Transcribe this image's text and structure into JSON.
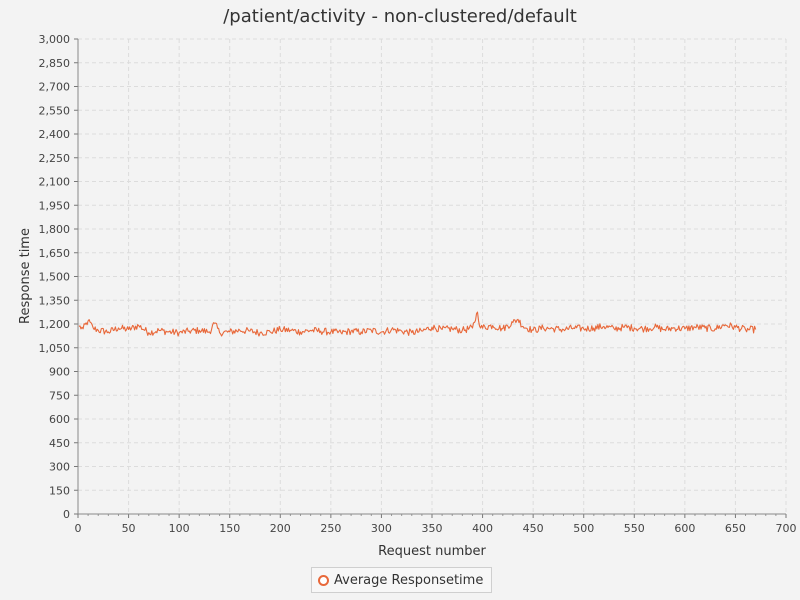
{
  "chart_data": {
    "type": "line",
    "title": "/patient/activity - non-clustered/default",
    "xlabel": "Request number",
    "ylabel": "Response time",
    "xlim": [
      0,
      700
    ],
    "ylim": [
      0,
      3000
    ],
    "x_ticks": [
      0,
      50,
      100,
      150,
      200,
      250,
      300,
      350,
      400,
      450,
      500,
      550,
      600,
      650,
      700
    ],
    "y_ticks": [
      0,
      150,
      300,
      450,
      600,
      750,
      900,
      1050,
      1200,
      1350,
      1500,
      1650,
      1800,
      1950,
      2100,
      2250,
      2400,
      2550,
      2700,
      2850,
      3000
    ],
    "y_tick_labels": [
      "0",
      "150",
      "300",
      "450",
      "600",
      "750",
      "900",
      "1,050",
      "1,200",
      "1,350",
      "1,500",
      "1,650",
      "1,800",
      "1,950",
      "2,100",
      "2,250",
      "2,400",
      "2,550",
      "2,700",
      "2,850",
      "3,000"
    ],
    "grid": true,
    "legend_position": "bottom-center",
    "series": [
      {
        "name": "Average Responsetime",
        "color": "#e8683a",
        "x_start": 1,
        "x_end": 670,
        "anchors": [
          [
            1,
            1185
          ],
          [
            5,
            1170
          ],
          [
            10,
            1220
          ],
          [
            15,
            1175
          ],
          [
            20,
            1160
          ],
          [
            30,
            1150
          ],
          [
            40,
            1175
          ],
          [
            50,
            1165
          ],
          [
            60,
            1190
          ],
          [
            70,
            1145
          ],
          [
            80,
            1160
          ],
          [
            90,
            1150
          ],
          [
            100,
            1145
          ],
          [
            110,
            1155
          ],
          [
            120,
            1160
          ],
          [
            130,
            1150
          ],
          [
            135,
            1205
          ],
          [
            140,
            1145
          ],
          [
            150,
            1150
          ],
          [
            160,
            1160
          ],
          [
            170,
            1155
          ],
          [
            180,
            1145
          ],
          [
            190,
            1150
          ],
          [
            200,
            1165
          ],
          [
            210,
            1160
          ],
          [
            220,
            1150
          ],
          [
            230,
            1160
          ],
          [
            240,
            1155
          ],
          [
            250,
            1150
          ],
          [
            260,
            1145
          ],
          [
            270,
            1155
          ],
          [
            280,
            1150
          ],
          [
            290,
            1160
          ],
          [
            300,
            1150
          ],
          [
            310,
            1165
          ],
          [
            320,
            1155
          ],
          [
            330,
            1145
          ],
          [
            340,
            1155
          ],
          [
            350,
            1180
          ],
          [
            360,
            1165
          ],
          [
            370,
            1170
          ],
          [
            380,
            1160
          ],
          [
            390,
            1175
          ],
          [
            395,
            1275
          ],
          [
            398,
            1175
          ],
          [
            410,
            1190
          ],
          [
            420,
            1170
          ],
          [
            430,
            1210
          ],
          [
            435,
            1230
          ],
          [
            440,
            1185
          ],
          [
            450,
            1160
          ],
          [
            460,
            1175
          ],
          [
            470,
            1170
          ],
          [
            480,
            1165
          ],
          [
            490,
            1175
          ],
          [
            500,
            1170
          ],
          [
            510,
            1175
          ],
          [
            520,
            1185
          ],
          [
            530,
            1170
          ],
          [
            540,
            1180
          ],
          [
            550,
            1175
          ],
          [
            560,
            1170
          ],
          [
            570,
            1180
          ],
          [
            580,
            1165
          ],
          [
            590,
            1175
          ],
          [
            600,
            1170
          ],
          [
            610,
            1180
          ],
          [
            620,
            1175
          ],
          [
            630,
            1170
          ],
          [
            640,
            1195
          ],
          [
            650,
            1180
          ],
          [
            660,
            1165
          ],
          [
            670,
            1165
          ]
        ],
        "noise_amplitude": 22
      }
    ]
  }
}
